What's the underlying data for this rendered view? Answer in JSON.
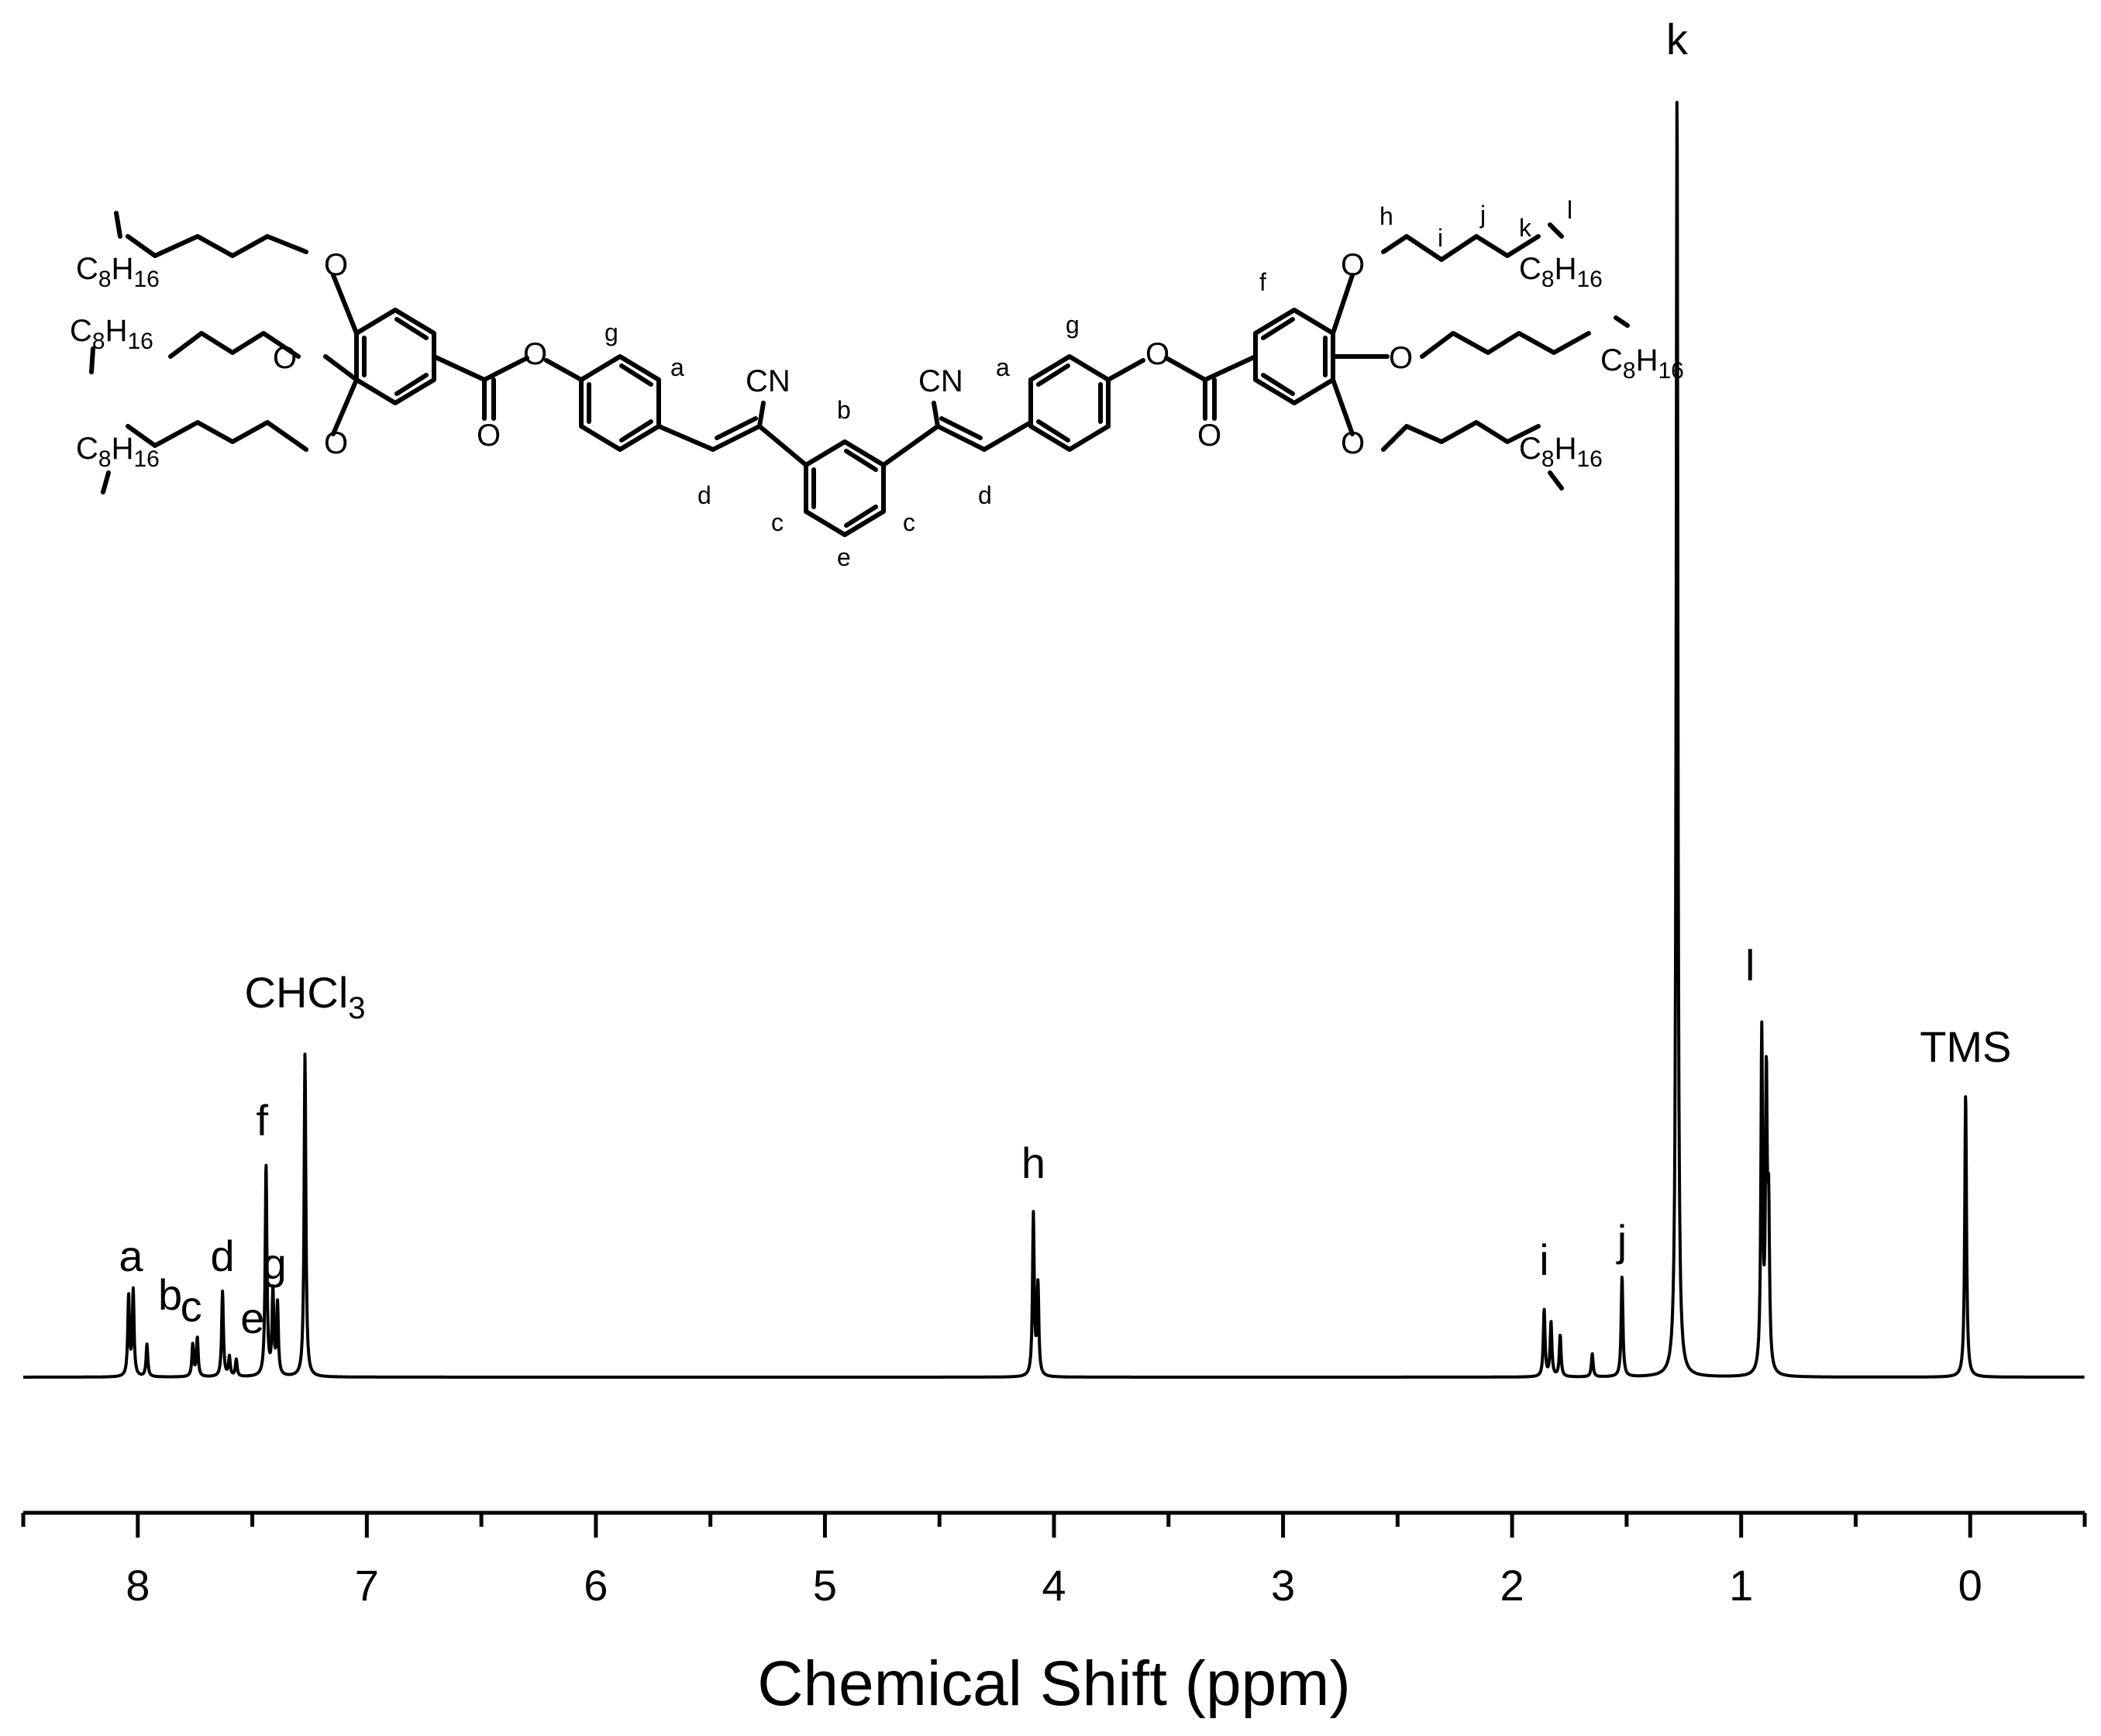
{
  "chart_data": {
    "type": "line",
    "title": "",
    "xlabel": "Chemical Shift (ppm)",
    "ylabel": "",
    "x_reversed": true,
    "xlim": [
      8.5,
      -0.5
    ],
    "ylim": [
      0,
      1
    ],
    "x_ticks": [
      8,
      7,
      6,
      5,
      4,
      3,
      2,
      1,
      0
    ],
    "x_tick_labels": [
      "8",
      "7",
      "6",
      "5",
      "4",
      "3",
      "2",
      "1",
      "0"
    ],
    "grid": false,
    "series": [
      {
        "peaks": [
          {
            "shift": 8.04,
            "height": 0.062
          },
          {
            "shift": 8.02,
            "height": 0.066
          },
          {
            "shift": 7.96,
            "height": 0.025
          },
          {
            "shift": 7.76,
            "height": 0.025
          },
          {
            "shift": 7.74,
            "height": 0.03
          },
          {
            "shift": 7.63,
            "height": 0.066
          },
          {
            "shift": 7.6,
            "height": 0.015
          },
          {
            "shift": 7.57,
            "height": 0.013
          },
          {
            "shift": 7.44,
            "height": 0.164
          },
          {
            "shift": 7.41,
            "height": 0.065
          },
          {
            "shift": 7.39,
            "height": 0.055
          },
          {
            "shift": 7.27,
            "height": 0.25
          },
          {
            "shift": 4.09,
            "height": 0.125
          },
          {
            "shift": 4.07,
            "height": 0.07
          },
          {
            "shift": 1.86,
            "height": 0.052
          },
          {
            "shift": 1.83,
            "height": 0.042
          },
          {
            "shift": 1.79,
            "height": 0.032
          },
          {
            "shift": 1.65,
            "height": 0.018
          },
          {
            "shift": 1.52,
            "height": 0.078
          },
          {
            "shift": 1.28,
            "height": 1.0
          },
          {
            "shift": 0.91,
            "height": 0.262
          },
          {
            "shift": 0.89,
            "height": 0.22
          },
          {
            "shift": 0.88,
            "height": 0.115
          },
          {
            "shift": 0.02,
            "height": 0.22
          }
        ]
      }
    ],
    "annotations": [
      {
        "text": "a",
        "shift": 8.03
      },
      {
        "text": "b",
        "shift": 7.96
      },
      {
        "text": "c",
        "shift": 7.75
      },
      {
        "text": "d",
        "shift": 7.63
      },
      {
        "text": "e",
        "shift": 7.55
      },
      {
        "text": "g",
        "shift": 7.41
      },
      {
        "text": "f",
        "shift": 7.44
      },
      {
        "text": "CHCl",
        "subscript": "3",
        "shift": 7.27
      },
      {
        "text": "h",
        "shift": 4.09
      },
      {
        "text": "i",
        "shift": 1.86
      },
      {
        "text": "j",
        "shift": 1.52
      },
      {
        "text": "k",
        "shift": 1.28
      },
      {
        "text": "l",
        "shift": 0.91
      },
      {
        "text": "TMS",
        "shift": 0.02
      }
    ]
  },
  "structure": {
    "chain_label": "C",
    "chain_sub1": "8",
    "chain_h": "H",
    "chain_sub2": "16",
    "oxygen": "O",
    "cyano": "CN",
    "proton_labels": {
      "a": "a",
      "b": "b",
      "c": "c",
      "d": "d",
      "e": "e",
      "f": "f",
      "g": "g",
      "h": "h",
      "i": "i",
      "j": "j",
      "k": "k",
      "l": "l"
    }
  }
}
